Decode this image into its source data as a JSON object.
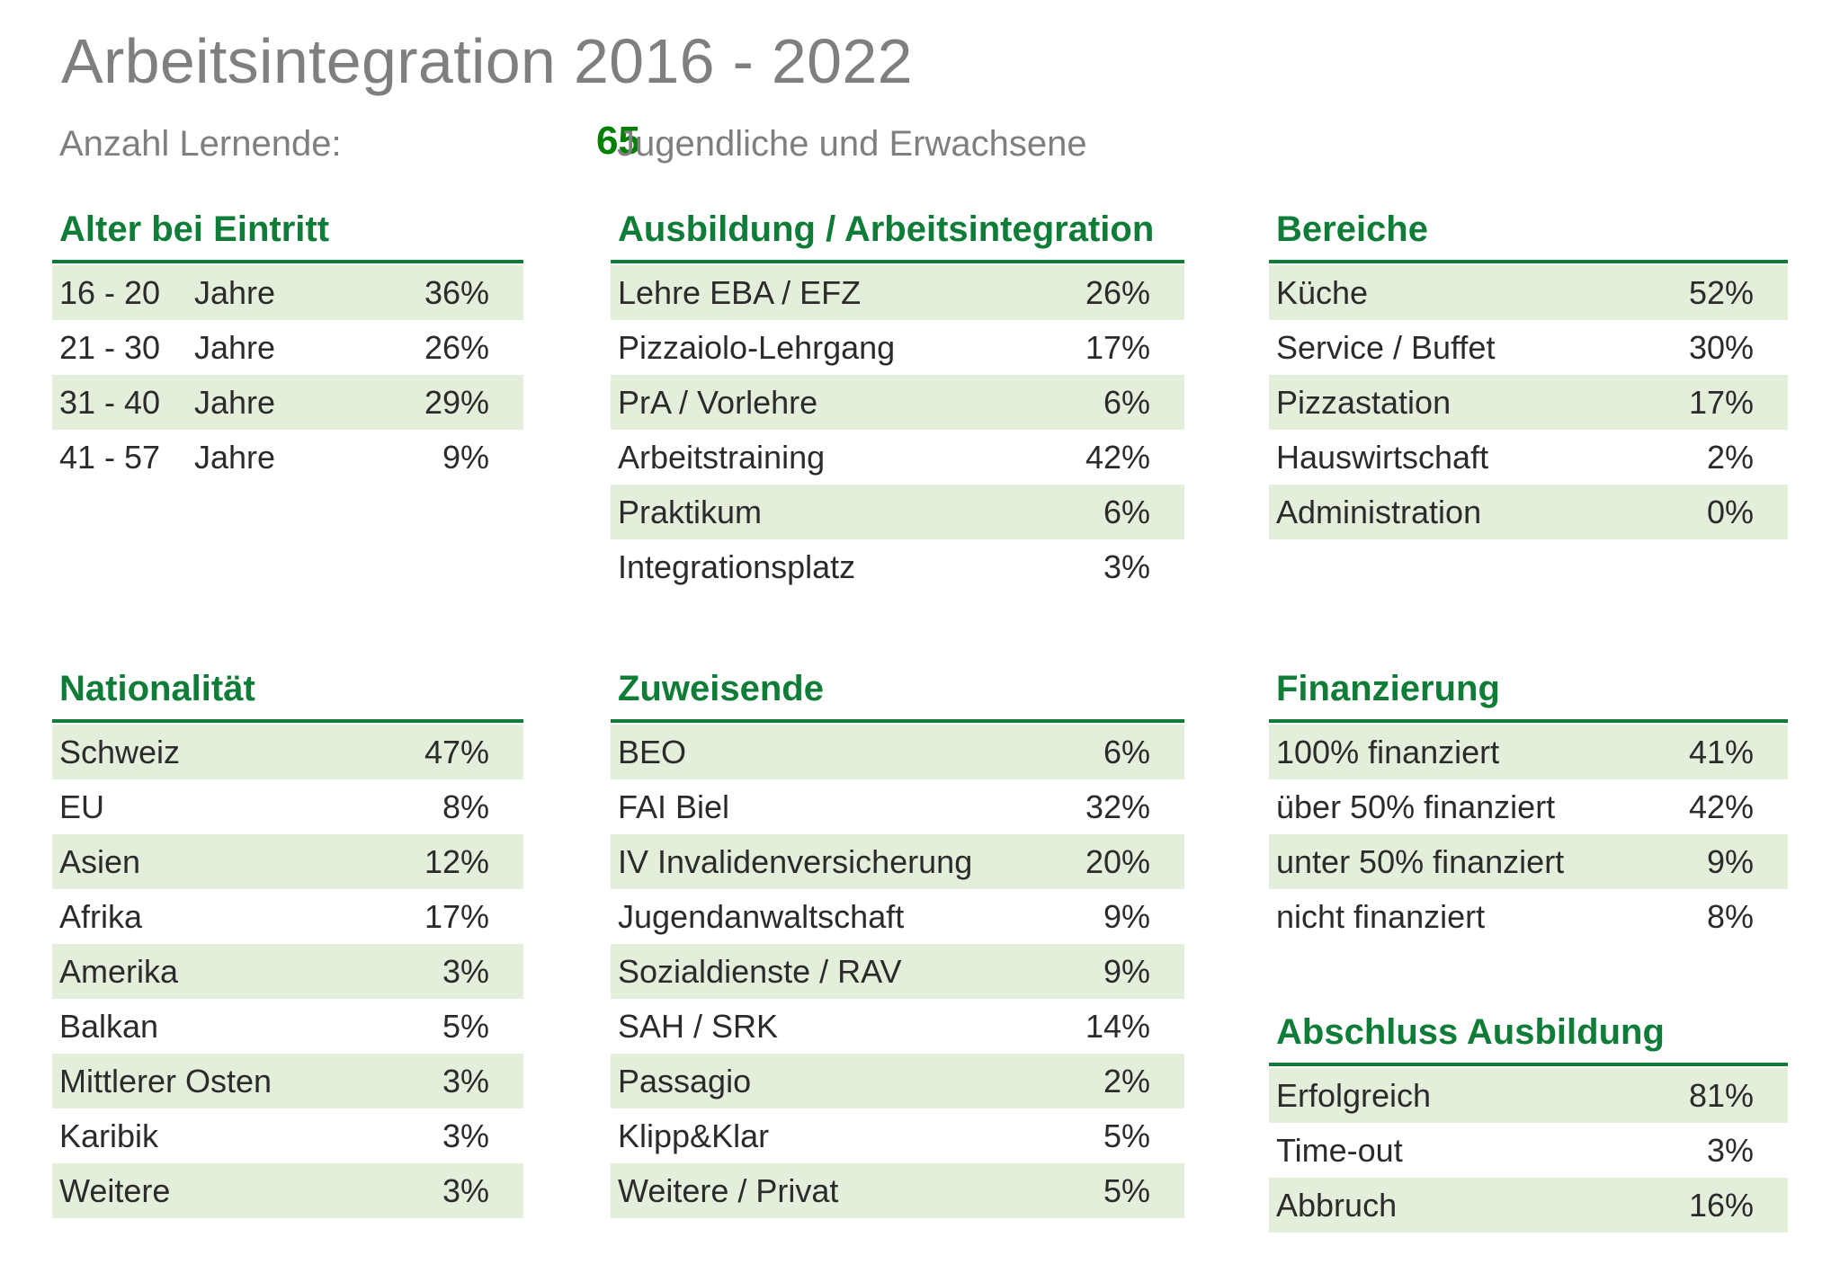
{
  "title": "Arbeitsintegration 2016 - 2022",
  "summary": {
    "label": "Anzahl Lernende:",
    "count": "65",
    "description": "Jugendliche und Erwachsene"
  },
  "accent_color": "#0f7c38",
  "stripe_color": "#e3efdb",
  "age": {
    "heading": "Alter bei Eintritt",
    "rows": [
      {
        "range": "16 - 20",
        "unit": "Jahre",
        "pct": "36%"
      },
      {
        "range": "21 - 30",
        "unit": "Jahre",
        "pct": "26%"
      },
      {
        "range": "31 - 40",
        "unit": "Jahre",
        "pct": "29%"
      },
      {
        "range": "41 - 57",
        "unit": "Jahre",
        "pct": "9%"
      }
    ]
  },
  "training": {
    "heading": "Ausbildung / Arbeitsintegration",
    "rows": [
      {
        "label": "Lehre EBA / EFZ",
        "pct": "26%"
      },
      {
        "label": "Pizzaiolo-Lehrgang",
        "pct": "17%"
      },
      {
        "label": "PrA / Vorlehre",
        "pct": "6%"
      },
      {
        "label": "Arbeitstraining",
        "pct": "42%"
      },
      {
        "label": "Praktikum",
        "pct": "6%"
      },
      {
        "label": "Integrationsplatz",
        "pct": "3%"
      }
    ]
  },
  "areas": {
    "heading": "Bereiche",
    "rows": [
      {
        "label": "Küche",
        "pct": "52%"
      },
      {
        "label": "Service / Buffet",
        "pct": "30%"
      },
      {
        "label": "Pizzastation",
        "pct": "17%"
      },
      {
        "label": "Hauswirtschaft",
        "pct": "2%"
      },
      {
        "label": "Administration",
        "pct": "0%"
      }
    ]
  },
  "nationality": {
    "heading": "Nationalität",
    "rows": [
      {
        "label": "Schweiz",
        "pct": "47%"
      },
      {
        "label": "EU",
        "pct": "8%"
      },
      {
        "label": "Asien",
        "pct": "12%"
      },
      {
        "label": "Afrika",
        "pct": "17%"
      },
      {
        "label": "Amerika",
        "pct": "3%"
      },
      {
        "label": "Balkan",
        "pct": "5%"
      },
      {
        "label": "Mittlerer Osten",
        "pct": "3%"
      },
      {
        "label": "Karibik",
        "pct": "3%"
      },
      {
        "label": "Weitere",
        "pct": "3%"
      }
    ]
  },
  "referrers": {
    "heading": "Zuweisende",
    "rows": [
      {
        "label": "BEO",
        "pct": "6%"
      },
      {
        "label": "FAI Biel",
        "pct": "32%"
      },
      {
        "label": "IV Invalidenversicherung",
        "pct": "20%"
      },
      {
        "label": "Jugendanwaltschaft",
        "pct": "9%"
      },
      {
        "label": "Sozialdienste / RAV",
        "pct": "9%"
      },
      {
        "label": "SAH / SRK",
        "pct": "14%"
      },
      {
        "label": "Passagio",
        "pct": "2%"
      },
      {
        "label": "Klipp&Klar",
        "pct": "5%"
      },
      {
        "label": "Weitere / Privat",
        "pct": "5%"
      }
    ]
  },
  "financing": {
    "heading": "Finanzierung",
    "rows": [
      {
        "label": "100% finanziert",
        "pct": "41%"
      },
      {
        "label": "über 50% finanziert",
        "pct": "42%"
      },
      {
        "label": "unter 50% finanziert",
        "pct": "9%"
      },
      {
        "label": "nicht finanziert",
        "pct": "8%"
      }
    ]
  },
  "completion": {
    "heading": "Abschluss Ausbildung",
    "rows": [
      {
        "label": "Erfolgreich",
        "pct": "81%"
      },
      {
        "label": "Time-out",
        "pct": "3%"
      },
      {
        "label": "Abbruch",
        "pct": "16%"
      }
    ]
  }
}
